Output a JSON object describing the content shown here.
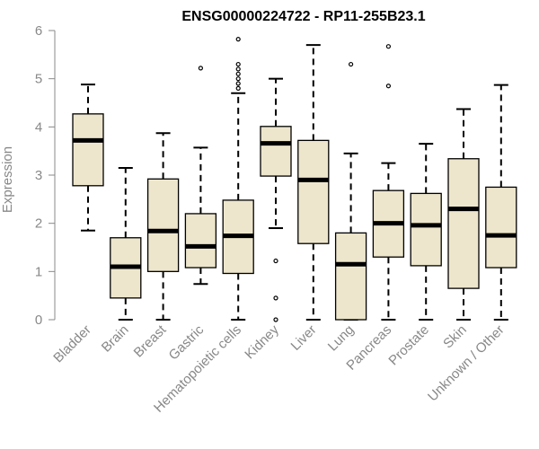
{
  "chart_data": {
    "type": "boxplot",
    "title": "ENSG00000224722 - RP11-255B23.1",
    "xlabel": "",
    "ylabel": "Expression",
    "ylim": [
      0,
      6
    ],
    "yticks": [
      0,
      1,
      2,
      3,
      4,
      5,
      6
    ],
    "colors": {
      "box_fill": "#ede6cc",
      "box_stroke": "#000000",
      "median": "#000000",
      "axis": "#888888",
      "text": "#888888"
    },
    "categories": [
      "Bladder",
      "Brain",
      "Breast",
      "Gastric",
      "Hematopoietic cells",
      "Kidney",
      "Liver",
      "Lung",
      "Pancreas",
      "Prostate",
      "Skin",
      "Unknown / Other"
    ],
    "boxes": [
      {
        "category": "Bladder",
        "whisker_low": 1.85,
        "q1": 2.78,
        "median": 3.72,
        "q3": 4.27,
        "whisker_high": 4.88,
        "outliers": []
      },
      {
        "category": "Brain",
        "whisker_low": 0.0,
        "q1": 0.45,
        "median": 1.1,
        "q3": 1.7,
        "whisker_high": 3.15,
        "outliers": []
      },
      {
        "category": "Breast",
        "whisker_low": 0.0,
        "q1": 1.0,
        "median": 1.84,
        "q3": 2.92,
        "whisker_high": 3.87,
        "outliers": []
      },
      {
        "category": "Gastric",
        "whisker_low": 0.74,
        "q1": 1.08,
        "median": 1.52,
        "q3": 2.2,
        "whisker_high": 3.57,
        "outliers": [
          5.22
        ]
      },
      {
        "category": "Hematopoietic cells",
        "whisker_low": 0.0,
        "q1": 0.96,
        "median": 1.74,
        "q3": 2.48,
        "whisker_high": 4.7,
        "outliers": [
          4.8,
          4.9,
          5.0,
          5.1,
          5.2,
          5.3,
          5.82
        ]
      },
      {
        "category": "Kidney",
        "whisker_low": 1.9,
        "q1": 2.98,
        "median": 3.66,
        "q3": 4.01,
        "whisker_high": 5.0,
        "outliers": [
          1.22,
          0.45,
          0.0
        ]
      },
      {
        "category": "Liver",
        "whisker_low": 0.0,
        "q1": 1.58,
        "median": 2.9,
        "q3": 3.72,
        "whisker_high": 5.7,
        "outliers": []
      },
      {
        "category": "Lung",
        "whisker_low": 0.0,
        "q1": 0.0,
        "median": 1.15,
        "q3": 1.8,
        "whisker_high": 3.45,
        "outliers": [
          5.3
        ]
      },
      {
        "category": "Pancreas",
        "whisker_low": 0.0,
        "q1": 1.3,
        "median": 2.0,
        "q3": 2.68,
        "whisker_high": 3.25,
        "outliers": [
          4.85,
          5.67
        ]
      },
      {
        "category": "Prostate",
        "whisker_low": 0.0,
        "q1": 1.12,
        "median": 1.96,
        "q3": 2.62,
        "whisker_high": 3.65,
        "outliers": []
      },
      {
        "category": "Skin",
        "whisker_low": 0.0,
        "q1": 0.65,
        "median": 2.3,
        "q3": 3.34,
        "whisker_high": 4.37,
        "outliers": []
      },
      {
        "category": "Unknown / Other",
        "whisker_low": 0.0,
        "q1": 1.08,
        "median": 1.75,
        "q3": 2.75,
        "whisker_high": 4.87,
        "outliers": []
      }
    ]
  }
}
